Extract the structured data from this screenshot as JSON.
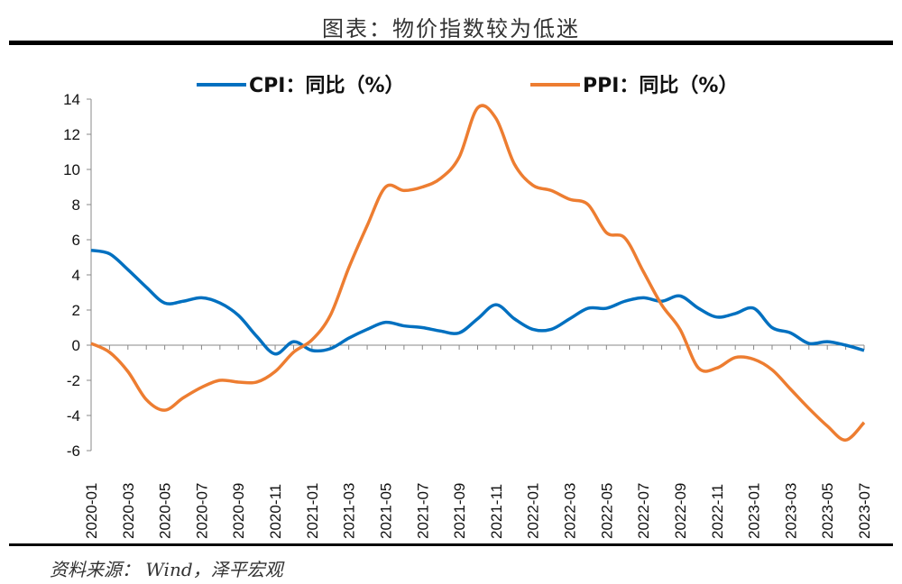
{
  "title": "图表：物价指数较为低迷",
  "source": "资料来源： Wind，泽平宏观",
  "chart_data": {
    "type": "line",
    "title": "",
    "xlabel": "",
    "ylabel": "",
    "ylim": [
      -6,
      14
    ],
    "yticks": [
      -6,
      -4,
      -2,
      0,
      2,
      4,
      6,
      8,
      10,
      12,
      14
    ],
    "grid": false,
    "legend_position": "top",
    "x": [
      "2020-01",
      "2020-02",
      "2020-03",
      "2020-04",
      "2020-05",
      "2020-06",
      "2020-07",
      "2020-08",
      "2020-09",
      "2020-10",
      "2020-11",
      "2020-12",
      "2021-01",
      "2021-02",
      "2021-03",
      "2021-04",
      "2021-05",
      "2021-06",
      "2021-07",
      "2021-08",
      "2021-09",
      "2021-10",
      "2021-11",
      "2021-12",
      "2022-01",
      "2022-02",
      "2022-03",
      "2022-04",
      "2022-05",
      "2022-06",
      "2022-07",
      "2022-08",
      "2022-09",
      "2022-10",
      "2022-11",
      "2022-12",
      "2023-01",
      "2023-02",
      "2023-03",
      "2023-04",
      "2023-05",
      "2023-06",
      "2023-07"
    ],
    "xtick_labels": [
      "2020-01",
      "2020-03",
      "2020-05",
      "2020-07",
      "2020-09",
      "2020-11",
      "2021-01",
      "2021-03",
      "2021-05",
      "2021-07",
      "2021-09",
      "2021-11",
      "2022-01",
      "2022-03",
      "2022-05",
      "2022-07",
      "2022-09",
      "2022-11",
      "2023-01",
      "2023-03",
      "2023-05",
      "2023-07"
    ],
    "series": [
      {
        "name": "CPI：同比（%）",
        "color": "#0070C0",
        "values": [
          5.4,
          5.2,
          4.3,
          3.3,
          2.4,
          2.5,
          2.7,
          2.4,
          1.7,
          0.5,
          -0.5,
          0.2,
          -0.3,
          -0.2,
          0.4,
          0.9,
          1.3,
          1.1,
          1.0,
          0.8,
          0.7,
          1.5,
          2.3,
          1.5,
          0.9,
          0.9,
          1.5,
          2.1,
          2.1,
          2.5,
          2.7,
          2.5,
          2.8,
          2.1,
          1.6,
          1.8,
          2.1,
          1.0,
          0.7,
          0.1,
          0.2,
          0.0,
          -0.3
        ]
      },
      {
        "name": "PPI：同比（%）",
        "color": "#ED7D31",
        "values": [
          0.1,
          -0.4,
          -1.5,
          -3.1,
          -3.7,
          -3.0,
          -2.4,
          -2.0,
          -2.1,
          -2.1,
          -1.5,
          -0.4,
          0.3,
          1.7,
          4.4,
          6.8,
          9.0,
          8.8,
          9.0,
          9.5,
          10.7,
          13.5,
          12.9,
          10.3,
          9.1,
          8.8,
          8.3,
          8.0,
          6.4,
          6.1,
          4.2,
          2.3,
          0.9,
          -1.3,
          -1.3,
          -0.7,
          -0.8,
          -1.4,
          -2.5,
          -3.6,
          -4.6,
          -5.4,
          -4.4
        ]
      }
    ]
  }
}
